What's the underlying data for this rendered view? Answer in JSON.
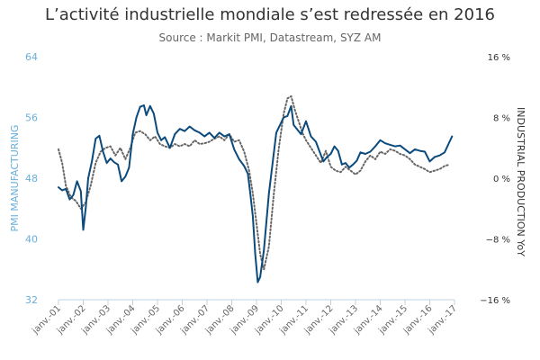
{
  "chart_data": {
    "type": "line",
    "title": "L’activité industrielle mondiale s’est redressée en 2016",
    "subtitle": "Source : Markit PMI, Datastream, SYZ AM",
    "ylabel_left": "PMI MANUFACTURING",
    "ylabel_right": "INDUSTRIAL PRODUCTION YoY",
    "ylim_left": [
      32,
      64
    ],
    "ylim_right": [
      -16,
      16
    ],
    "yticks_left": [
      "32",
      "40",
      "48",
      "56",
      "64"
    ],
    "yticks_right": [
      "−16 %",
      "−8 %",
      "0 %",
      "8 %",
      "16 %"
    ],
    "yticks_right_values": [
      -16,
      -8,
      0,
      8,
      16
    ],
    "xlim": [
      2001.0,
      2017.0
    ],
    "xtick_labels": [
      "janv.-01",
      "janv.-02",
      "janv.-03",
      "janv.-04",
      "janv.-05",
      "janv.-06",
      "janv.-07",
      "janv.-08",
      "janv.-09",
      "janv.-10",
      "janv.-11",
      "janv.-12",
      "janv.-13",
      "janv.-14",
      "janv.-15",
      "janv.-16",
      "janv.-17"
    ],
    "xtick_values": [
      2001,
      2002,
      2003,
      2004,
      2005,
      2006,
      2007,
      2008,
      2009,
      2010,
      2011,
      2012,
      2013,
      2014,
      2015,
      2016,
      2017
    ],
    "grid": false,
    "legend": "none",
    "series": [
      {
        "axis": "left",
        "color": "#0b4a7c",
        "style": "solid",
        "x": [
          2001.0,
          2001.15,
          2001.3,
          2001.45,
          2001.6,
          2001.75,
          2001.9,
          2002.0,
          2002.1,
          2002.2,
          2002.35,
          2002.5,
          2002.65,
          2002.8,
          2002.95,
          2003.1,
          2003.25,
          2003.4,
          2003.55,
          2003.7,
          2003.85,
          2004.0,
          2004.15,
          2004.3,
          2004.45,
          2004.55,
          2004.7,
          2004.85,
          2005.0,
          2005.15,
          2005.3,
          2005.5,
          2005.7,
          2005.9,
          2006.1,
          2006.3,
          2006.5,
          2006.7,
          2006.9,
          2007.1,
          2007.3,
          2007.5,
          2007.7,
          2007.9,
          2008.1,
          2008.3,
          2008.5,
          2008.65,
          2008.75,
          2008.85,
          2008.95,
          2009.05,
          2009.15,
          2009.3,
          2009.5,
          2009.65,
          2009.8,
          2009.95,
          2010.1,
          2010.25,
          2010.4,
          2010.5,
          2010.6,
          2010.8,
          2011.0,
          2011.2,
          2011.4,
          2011.55,
          2011.7,
          2011.85,
          2012.0,
          2012.15,
          2012.3,
          2012.45,
          2012.6,
          2012.75,
          2012.9,
          2013.05,
          2013.2,
          2013.4,
          2013.6,
          2013.8,
          2014.0,
          2014.2,
          2014.4,
          2014.6,
          2014.8,
          2015.0,
          2015.2,
          2015.4,
          2015.6,
          2015.8,
          2016.0,
          2016.2,
          2016.4,
          2016.6,
          2016.8,
          2016.9
        ],
        "y": [
          46.8,
          46.4,
          46.6,
          45.2,
          45.8,
          47.6,
          46.3,
          41.2,
          44.0,
          48.0,
          50.2,
          53.2,
          53.6,
          51.5,
          50.0,
          50.6,
          50.1,
          49.8,
          47.6,
          48.2,
          49.4,
          53.8,
          56.0,
          57.4,
          57.6,
          56.3,
          57.5,
          56.5,
          54.0,
          53.0,
          53.4,
          52.0,
          53.8,
          54.5,
          54.2,
          54.8,
          54.3,
          54.0,
          53.5,
          54.0,
          53.3,
          54.0,
          53.5,
          53.8,
          51.8,
          50.5,
          49.6,
          48.6,
          46.0,
          43.0,
          38.0,
          34.3,
          35.0,
          38.5,
          46.0,
          50.0,
          54.0,
          55.0,
          56.0,
          56.2,
          57.5,
          55.0,
          54.6,
          53.8,
          55.5,
          53.5,
          52.8,
          51.5,
          50.2,
          50.8,
          51.2,
          52.2,
          51.6,
          49.8,
          50.0,
          49.4,
          49.8,
          50.3,
          51.4,
          51.2,
          51.5,
          52.2,
          53.0,
          52.6,
          52.4,
          52.2,
          52.3,
          51.8,
          51.3,
          51.8,
          51.6,
          51.5,
          50.2,
          50.8,
          51.0,
          51.4,
          52.8,
          53.5
        ]
      },
      {
        "axis": "right",
        "color": "#666666",
        "style": "dotted",
        "x": [
          2001.0,
          2001.15,
          2001.3,
          2001.5,
          2001.7,
          2001.9,
          2002.1,
          2002.3,
          2002.5,
          2002.7,
          2002.9,
          2003.1,
          2003.3,
          2003.5,
          2003.7,
          2003.9,
          2004.1,
          2004.3,
          2004.5,
          2004.7,
          2004.9,
          2005.1,
          2005.3,
          2005.5,
          2005.7,
          2005.9,
          2006.1,
          2006.3,
          2006.5,
          2006.7,
          2006.9,
          2007.1,
          2007.3,
          2007.5,
          2007.7,
          2007.9,
          2008.1,
          2008.3,
          2008.5,
          2008.7,
          2008.85,
          2009.0,
          2009.15,
          2009.3,
          2009.5,
          2009.7,
          2009.9,
          2010.1,
          2010.25,
          2010.4,
          2010.55,
          2010.7,
          2010.85,
          2011.0,
          2011.2,
          2011.4,
          2011.6,
          2011.8,
          2012.0,
          2012.2,
          2012.4,
          2012.6,
          2012.8,
          2013.0,
          2013.2,
          2013.4,
          2013.6,
          2013.8,
          2014.0,
          2014.2,
          2014.4,
          2014.6,
          2014.8,
          2015.0,
          2015.2,
          2015.4,
          2015.6,
          2015.8,
          2016.0,
          2016.2,
          2016.4,
          2016.6,
          2016.8
        ],
        "y": [
          3.8,
          2.0,
          -1.0,
          -2.5,
          -3.0,
          -4.0,
          -3.2,
          -1.0,
          2.0,
          3.5,
          4.0,
          4.2,
          3.0,
          4.0,
          2.5,
          4.0,
          6.0,
          6.2,
          5.8,
          5.0,
          5.5,
          4.5,
          4.2,
          4.0,
          4.5,
          4.2,
          4.5,
          4.2,
          5.0,
          4.5,
          4.6,
          4.8,
          5.2,
          5.5,
          5.0,
          5.8,
          4.8,
          5.0,
          3.5,
          1.0,
          -2.0,
          -6.0,
          -10.0,
          -12.0,
          -9.0,
          -2.0,
          4.0,
          8.5,
          10.5,
          10.8,
          9.0,
          7.5,
          6.0,
          5.0,
          4.0,
          3.0,
          2.0,
          3.6,
          1.5,
          1.0,
          0.8,
          1.5,
          1.0,
          0.5,
          1.0,
          2.2,
          3.0,
          2.5,
          3.5,
          3.2,
          3.8,
          3.6,
          3.2,
          3.0,
          2.5,
          1.8,
          1.5,
          1.2,
          0.8,
          1.0,
          1.2,
          1.6,
          1.8
        ]
      }
    ]
  }
}
